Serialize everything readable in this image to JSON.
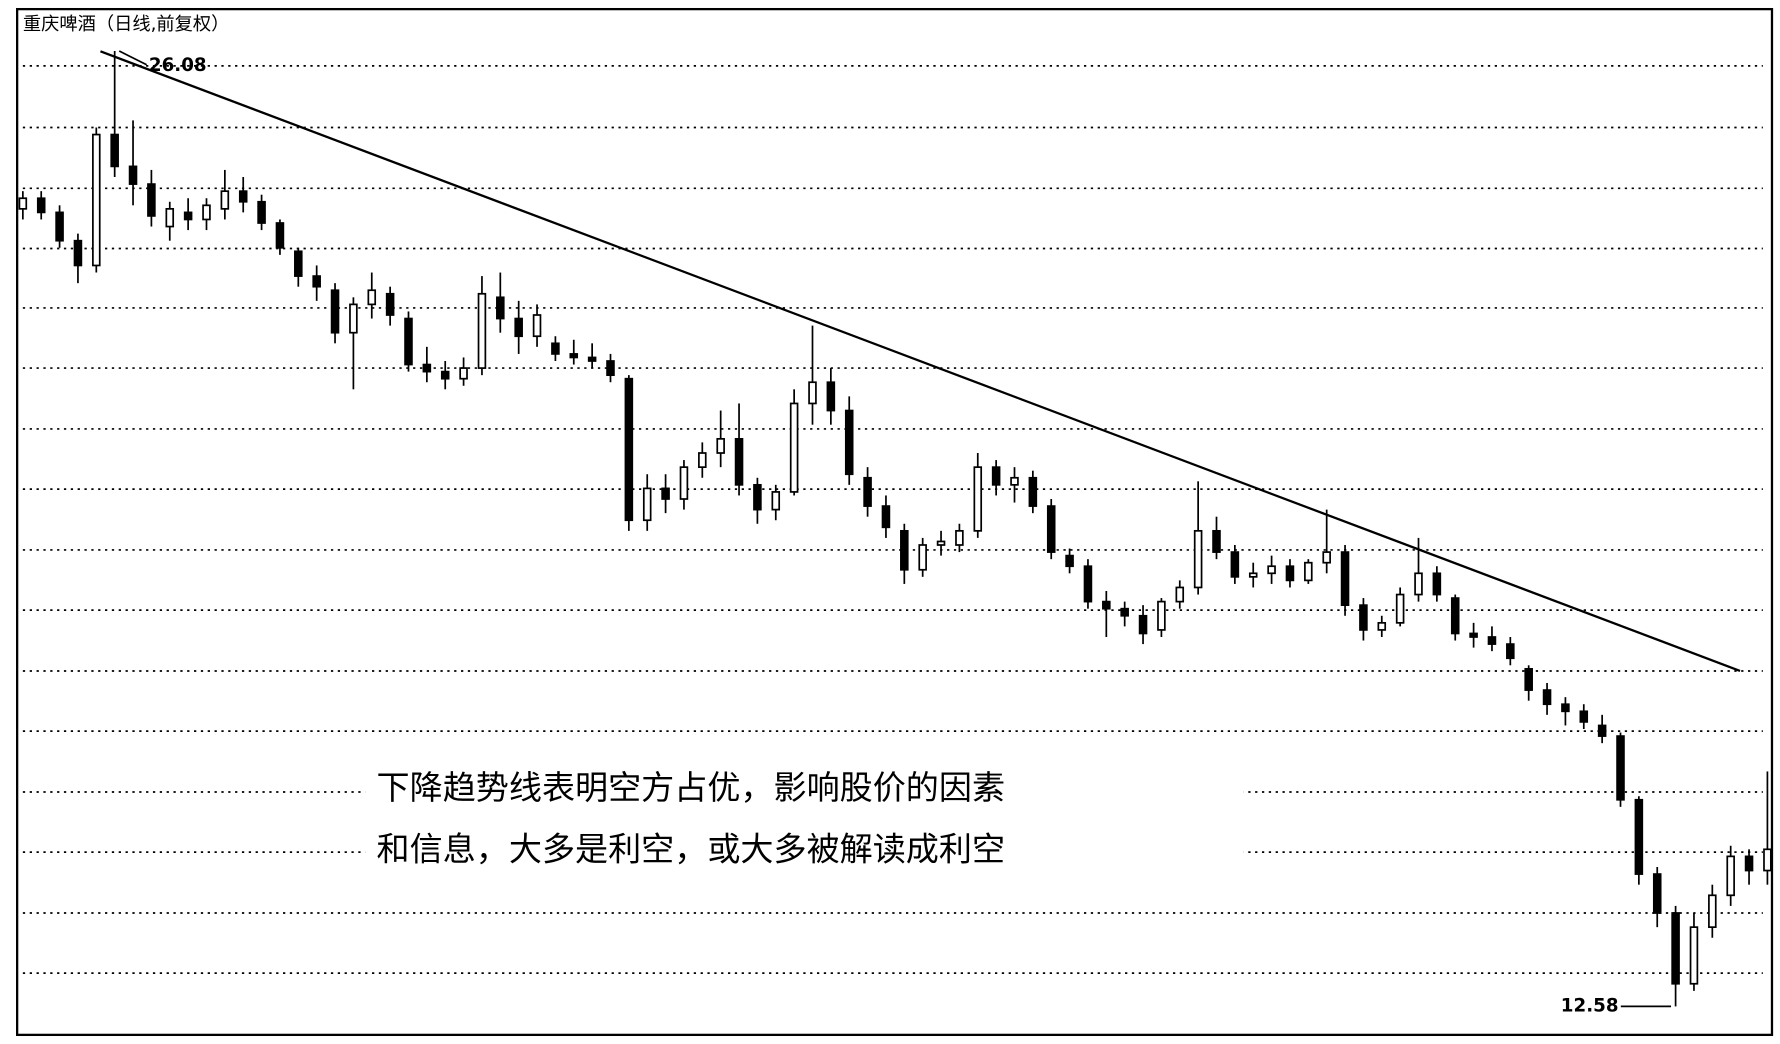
{
  "chart_data": {
    "type": "candlestick",
    "title": "重庆啤酒（日线,前复权）",
    "annotation": [
      "下降趋势线表明空方占优，影响股价的因素",
      "和信息，大多是利空，或大多被解读成利空"
    ],
    "high_marker": 26.08,
    "low_marker": 12.58,
    "ylim": [
      12.21,
      26.64
    ],
    "yticks": [
      25.87,
      25.0,
      24.14,
      23.29,
      22.45,
      21.6,
      20.74,
      19.89,
      19.03,
      18.18,
      17.32,
      16.47,
      15.61,
      14.76,
      13.9,
      13.05
    ],
    "grid": true,
    "up_color": "#ffffff",
    "down_color": "#000000",
    "open": [
      23.85,
      24.0,
      23.8,
      23.4,
      23.05,
      24.9,
      24.45,
      24.2,
      23.6,
      23.8,
      23.7,
      23.85,
      24.1,
      23.95,
      23.65,
      23.25,
      22.9,
      22.7,
      22.1,
      22.5,
      22.65,
      22.3,
      21.65,
      21.55,
      21.45,
      21.6,
      22.6,
      22.3,
      22.05,
      21.95,
      21.8,
      21.75,
      21.7,
      21.45,
      19.45,
      19.9,
      19.75,
      20.2,
      20.4,
      20.6,
      19.95,
      19.6,
      19.85,
      21.1,
      21.4,
      21.0,
      20.05,
      19.65,
      19.3,
      18.75,
      19.1,
      19.1,
      19.3,
      20.2,
      19.95,
      20.05,
      19.65,
      18.95,
      18.8,
      18.3,
      18.2,
      18.1,
      17.9,
      18.3,
      18.5,
      19.3,
      19.0,
      18.65,
      18.7,
      18.8,
      18.6,
      18.85,
      19.0,
      18.25,
      17.9,
      18.0,
      18.4,
      18.7,
      18.35,
      17.85,
      17.8,
      17.7,
      17.35,
      17.05,
      16.85,
      16.75,
      16.55,
      16.4,
      15.5,
      14.45,
      13.9,
      12.9,
      13.7,
      14.15,
      14.7,
      14.5
    ],
    "high": [
      24.1,
      24.1,
      23.9,
      23.5,
      25.0,
      26.08,
      25.1,
      24.4,
      23.95,
      24.0,
      24.0,
      24.4,
      24.3,
      24.05,
      23.7,
      23.3,
      23.05,
      22.8,
      22.6,
      22.95,
      22.75,
      22.4,
      21.9,
      21.7,
      21.75,
      22.9,
      22.95,
      22.55,
      22.5,
      22.05,
      22.0,
      21.95,
      21.8,
      21.5,
      20.1,
      20.1,
      20.3,
      20.55,
      21.0,
      21.1,
      20.05,
      19.95,
      21.3,
      22.2,
      21.6,
      21.2,
      20.2,
      19.8,
      19.4,
      19.2,
      19.3,
      19.4,
      20.4,
      20.3,
      20.2,
      20.15,
      19.75,
      19.05,
      18.9,
      18.45,
      18.3,
      18.25,
      18.35,
      18.6,
      20.0,
      19.5,
      19.1,
      18.85,
      18.95,
      18.9,
      18.9,
      19.6,
      19.1,
      18.35,
      18.1,
      18.5,
      19.2,
      18.8,
      18.4,
      18.0,
      17.95,
      17.8,
      17.4,
      17.15,
      16.95,
      16.85,
      16.7,
      16.45,
      15.55,
      14.55,
      14.0,
      13.9,
      14.3,
      14.85,
      14.8,
      15.9
    ],
    "low": [
      23.7,
      23.7,
      23.3,
      22.8,
      22.95,
      24.3,
      23.9,
      23.6,
      23.4,
      23.55,
      23.55,
      23.7,
      23.8,
      23.55,
      23.2,
      22.75,
      22.55,
      21.95,
      21.3,
      22.3,
      22.2,
      21.55,
      21.4,
      21.3,
      21.35,
      21.5,
      22.1,
      21.8,
      21.9,
      21.7,
      21.65,
      21.6,
      21.4,
      19.3,
      19.3,
      19.55,
      19.6,
      20.05,
      20.2,
      19.8,
      19.4,
      19.45,
      19.8,
      20.8,
      20.8,
      19.95,
      19.5,
      19.2,
      18.55,
      18.65,
      18.95,
      19.0,
      19.2,
      19.8,
      19.7,
      19.55,
      18.9,
      18.7,
      18.2,
      17.8,
      17.95,
      17.7,
      17.8,
      18.2,
      18.4,
      18.9,
      18.55,
      18.5,
      18.55,
      18.5,
      18.55,
      18.7,
      18.1,
      17.75,
      17.8,
      17.95,
      18.3,
      18.3,
      17.75,
      17.65,
      17.6,
      17.4,
      16.9,
      16.7,
      16.55,
      16.5,
      16.3,
      15.4,
      14.3,
      13.7,
      12.58,
      12.8,
      13.55,
      14.0,
      14.3,
      14.3
    ],
    "close": [
      24.0,
      23.8,
      23.4,
      23.05,
      24.9,
      24.45,
      24.2,
      23.75,
      23.85,
      23.7,
      23.9,
      24.1,
      23.95,
      23.65,
      23.3,
      22.9,
      22.75,
      22.1,
      22.5,
      22.7,
      22.35,
      21.65,
      21.55,
      21.45,
      21.6,
      22.65,
      22.3,
      22.05,
      22.35,
      21.8,
      21.75,
      21.7,
      21.5,
      19.45,
      19.9,
      19.75,
      20.2,
      20.4,
      20.6,
      19.95,
      19.6,
      19.85,
      21.1,
      21.4,
      21.0,
      20.1,
      19.65,
      19.35,
      18.75,
      19.1,
      19.15,
      19.3,
      20.2,
      19.95,
      20.05,
      19.65,
      19.0,
      18.8,
      18.3,
      18.2,
      18.1,
      17.85,
      18.3,
      18.5,
      19.3,
      19.0,
      18.65,
      18.7,
      18.8,
      18.6,
      18.85,
      19.0,
      18.25,
      17.9,
      18.0,
      18.4,
      18.7,
      18.4,
      17.85,
      17.8,
      17.7,
      17.5,
      17.05,
      16.85,
      16.75,
      16.6,
      16.4,
      15.5,
      14.45,
      13.9,
      12.9,
      13.7,
      14.15,
      14.7,
      14.5,
      14.8
    ]
  }
}
